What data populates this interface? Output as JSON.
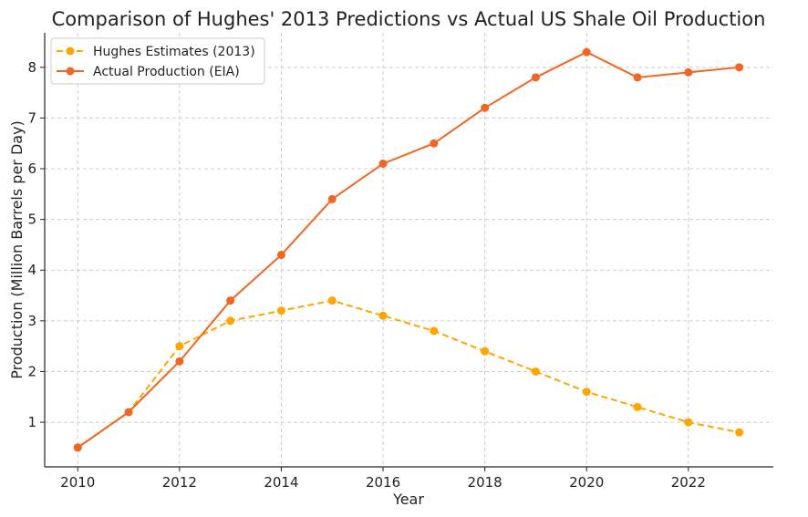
{
  "chart_data": {
    "type": "line",
    "title": "Comparison of Hughes' 2013 Predictions vs Actual US Shale Oil Production",
    "xlabel": "Year",
    "ylabel": "Production (Million Barrels per Day)",
    "x": [
      2010,
      2011,
      2012,
      2013,
      2014,
      2015,
      2016,
      2017,
      2018,
      2019,
      2020,
      2021,
      2022,
      2023
    ],
    "xlim": [
      2009.35,
      2023.67
    ],
    "ylim": [
      0.12,
      8.68
    ],
    "xticks": [
      2010,
      2012,
      2014,
      2016,
      2018,
      2020,
      2022
    ],
    "yticks": [
      1,
      2,
      3,
      4,
      5,
      6,
      7,
      8
    ],
    "grid": true,
    "legend_position": "top-left",
    "series": [
      {
        "name": "Hughes Estimates (2013)",
        "color": "#FFA500",
        "style": "dashed",
        "values": [
          0.5,
          1.2,
          2.5,
          3.0,
          3.2,
          3.4,
          3.1,
          2.8,
          2.4,
          2.0,
          1.6,
          1.3,
          1.0,
          0.8
        ]
      },
      {
        "name": "Actual Production (EIA)",
        "color": "#F26522",
        "style": "solid",
        "values": [
          0.5,
          1.2,
          2.2,
          3.4,
          4.3,
          5.4,
          6.1,
          6.5,
          7.2,
          7.8,
          8.3,
          7.8,
          7.9,
          8.0
        ]
      }
    ]
  }
}
